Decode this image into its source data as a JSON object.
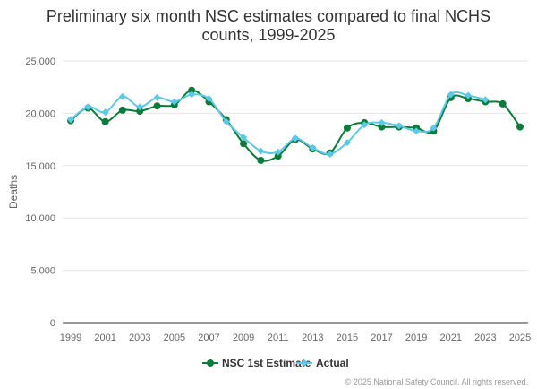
{
  "title_line1": "Preliminary six month NSC estimates compared to final NCHS",
  "title_line2": "counts, 1999-2025",
  "credits": "© 2025 National Safety Council. All rights reserved.",
  "colors": {
    "estimate": "#0a7c3a",
    "actual": "#5ec8e8",
    "grid": "#e6e6e6",
    "axis": "#333333"
  },
  "chart_data": {
    "type": "line",
    "title": "Preliminary six month NSC estimates compared to final NCHS counts, 1999-2025",
    "xlabel": "",
    "ylabel": "Deaths",
    "ylim": [
      0,
      25000
    ],
    "yticks": [
      0,
      5000,
      10000,
      15000,
      20000,
      25000
    ],
    "ytick_labels": [
      "0",
      "5,000",
      "10,000",
      "15,000",
      "20,000",
      "25,000"
    ],
    "xlim": [
      1999,
      2025
    ],
    "xticks": [
      "1999",
      "2001",
      "2003",
      "2005",
      "2007",
      "2009",
      "2011",
      "2013",
      "2015",
      "2017",
      "2019",
      "2021",
      "2023",
      "2025"
    ],
    "x": [
      1999,
      2000,
      2001,
      2002,
      2003,
      2004,
      2005,
      2006,
      2007,
      2008,
      2009,
      2010,
      2011,
      2012,
      2013,
      2014,
      2015,
      2016,
      2017,
      2018,
      2019,
      2020,
      2021,
      2022,
      2023,
      2024,
      2025
    ],
    "legend_position": "bottom-center",
    "series": [
      {
        "name": "NSC 1st Estimate",
        "marker": "circle",
        "values": [
          19300,
          20500,
          19200,
          20300,
          20200,
          20700,
          20800,
          22200,
          21100,
          19400,
          17100,
          15500,
          15900,
          17500,
          16600,
          16200,
          18600,
          19100,
          18700,
          18700,
          18600,
          18300,
          21500,
          21400,
          21100,
          20900,
          18700
        ]
      },
      {
        "name": "Actual",
        "marker": "diamond",
        "values": [
          19400,
          20600,
          20100,
          21600,
          20600,
          21500,
          21100,
          21800,
          21400,
          19200,
          17700,
          16400,
          16300,
          17600,
          16700,
          16100,
          17200,
          18900,
          19100,
          18800,
          18300,
          18600,
          21800,
          21700,
          21300,
          null,
          null
        ]
      }
    ]
  }
}
